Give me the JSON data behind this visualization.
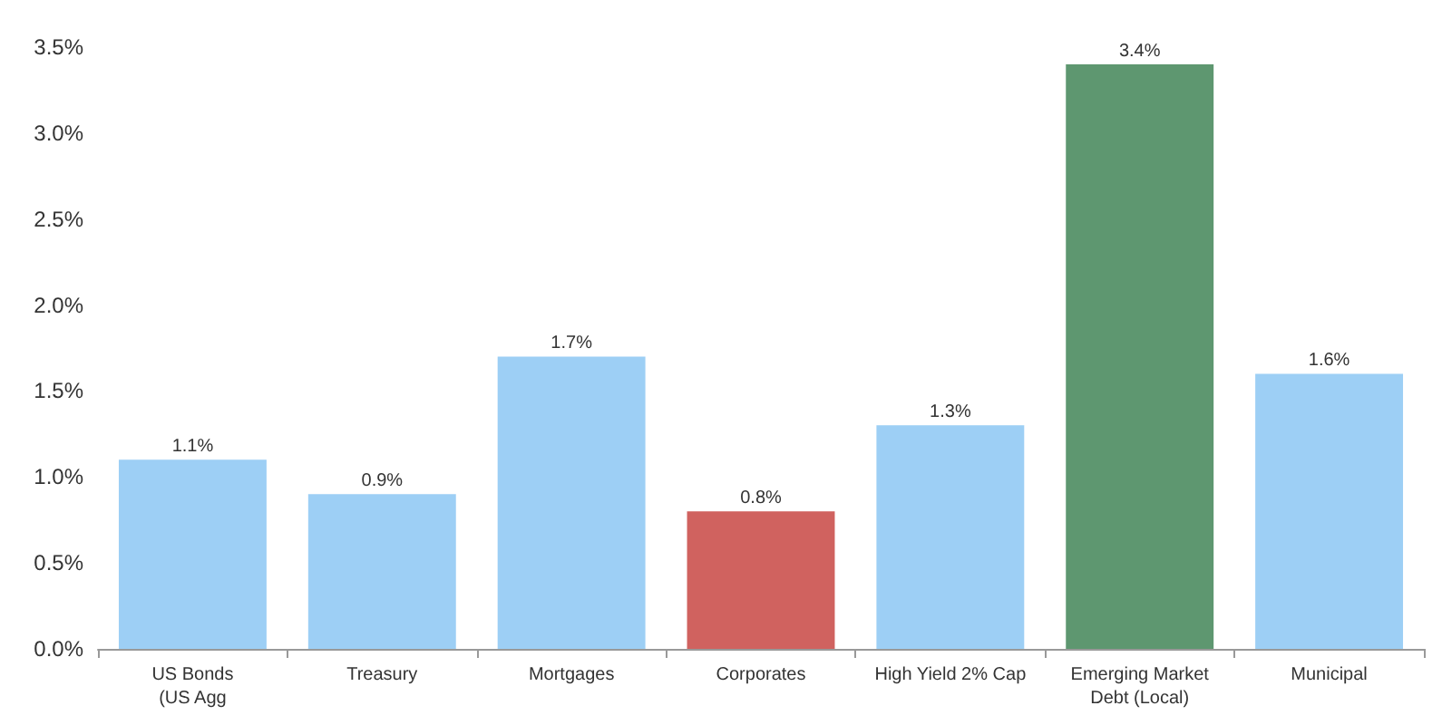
{
  "chart_data": {
    "type": "bar",
    "categories": [
      "US Bonds\n(US Agg",
      "Treasury",
      "Mortgages",
      "Corporates",
      "High Yield 2% Cap",
      "Emerging Market\nDebt (Local)",
      "Municipal"
    ],
    "values": [
      1.1,
      0.9,
      1.7,
      0.8,
      1.3,
      3.4,
      1.6
    ],
    "value_labels": [
      "1.1%",
      "0.9%",
      "1.7%",
      "0.8%",
      "1.3%",
      "3.4%",
      "1.6%"
    ],
    "colors": [
      "#9dcff5",
      "#9dcff5",
      "#9dcff5",
      "#d0625f",
      "#9dcff5",
      "#5e9770",
      "#9dcff5"
    ],
    "ylim": [
      0,
      3.5
    ],
    "yticks": [
      {
        "value": 0,
        "label": "0.0%"
      },
      {
        "value": 0.5,
        "label": "0.5%"
      },
      {
        "value": 1,
        "label": "1.0%"
      },
      {
        "value": 1.5,
        "label": "1.5%"
      },
      {
        "value": 2,
        "label": "2.0%"
      },
      {
        "value": 2.5,
        "label": "2.5%"
      },
      {
        "value": 3,
        "label": "3.0%"
      },
      {
        "value": 3.5,
        "label": "3.5%"
      }
    ],
    "grid": false
  }
}
